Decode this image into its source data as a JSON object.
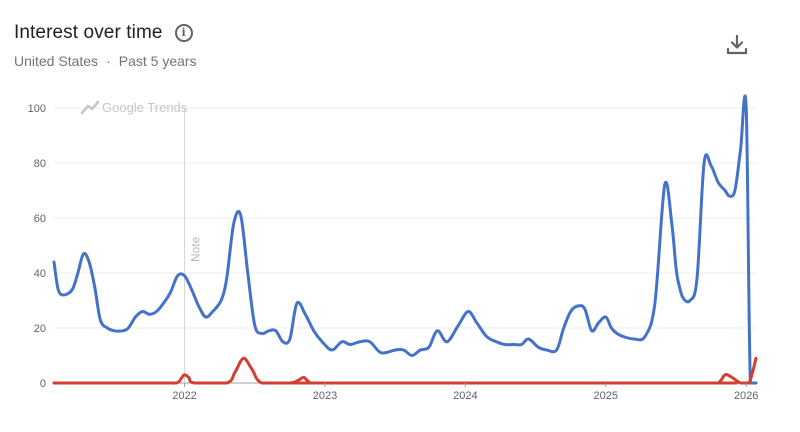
{
  "header": {
    "title": "Interest over time",
    "region": "United States",
    "separator": "·",
    "timeframe": "Past 5 years"
  },
  "icons": {
    "info": "info-icon",
    "download": "download-icon"
  },
  "watermark": "Google Trends",
  "note_label": "Note",
  "colors": {
    "series_blue": "#4472ca",
    "series_red": "#d23f31",
    "grid": "#ececec",
    "axis": "#9aa0a6"
  },
  "chart_data": {
    "type": "line",
    "xlabel": "",
    "ylabel": "",
    "ylim": [
      0,
      100
    ],
    "xlim": [
      2021.07,
      2026.07
    ],
    "y_ticks": [
      0,
      20,
      40,
      60,
      80,
      100
    ],
    "x_ticks": [
      2022,
      2023,
      2024,
      2025,
      2026
    ],
    "x_tick_labels": [
      "2022",
      "2023",
      "2024",
      "2025",
      "2026"
    ],
    "grid": true,
    "note_at": 2022.0,
    "series": [
      {
        "color": "#4472ca",
        "x": [
          2021.07,
          2021.1,
          2021.14,
          2021.2,
          2021.24,
          2021.28,
          2021.32,
          2021.36,
          2021.4,
          2021.45,
          2021.5,
          2021.56,
          2021.6,
          2021.65,
          2021.7,
          2021.75,
          2021.8,
          2021.85,
          2021.9,
          2021.95,
          2022.0,
          2022.05,
          2022.1,
          2022.15,
          2022.2,
          2022.26,
          2022.3,
          2022.35,
          2022.4,
          2022.45,
          2022.5,
          2022.55,
          2022.6,
          2022.65,
          2022.7,
          2022.75,
          2022.8,
          2022.86,
          2022.92,
          2022.98,
          2023.05,
          2023.12,
          2023.18,
          2023.25,
          2023.32,
          2023.4,
          2023.5,
          2023.56,
          2023.62,
          2023.68,
          2023.74,
          2023.8,
          2023.87,
          2023.95,
          2024.02,
          2024.08,
          2024.15,
          2024.22,
          2024.28,
          2024.35,
          2024.4,
          2024.45,
          2024.52,
          2024.58,
          2024.65,
          2024.7,
          2024.75,
          2024.8,
          2024.85,
          2024.9,
          2024.95,
          2025.0,
          2025.04,
          2025.08,
          2025.12,
          2025.2,
          2025.28,
          2025.35,
          2025.42,
          2025.47,
          2025.5,
          2025.52,
          2025.55,
          2025.6,
          2025.65,
          2025.7,
          2025.75,
          2025.8,
          2025.85,
          2025.88,
          2025.92,
          2025.96,
          2026.0,
          2026.03,
          2026.07
        ],
        "y": [
          44,
          34,
          32,
          34,
          40,
          47,
          44,
          35,
          23,
          20,
          19,
          19,
          20,
          24,
          26,
          25,
          26,
          29,
          33,
          39,
          39,
          34,
          28,
          24,
          26,
          30,
          38,
          58,
          61,
          40,
          21,
          18,
          19,
          19,
          15,
          16,
          29,
          25,
          19,
          15,
          12,
          15,
          14,
          15,
          15,
          11,
          12,
          12,
          10,
          12,
          13,
          19,
          15,
          21,
          26,
          22,
          17,
          15,
          14,
          14,
          14,
          16,
          13,
          12,
          12,
          20,
          26,
          28,
          27,
          19,
          22,
          24,
          20,
          18,
          17,
          16,
          17,
          29,
          72,
          58,
          42,
          36,
          31,
          30,
          38,
          80,
          79,
          73,
          70,
          68,
          70,
          85,
          100,
          0,
          0
        ],
        "name": ""
      },
      {
        "color": "#d23f31",
        "x": [
          2021.07,
          2021.8,
          2021.94,
          2021.98,
          2022.0,
          2022.03,
          2022.07,
          2022.3,
          2022.36,
          2022.42,
          2022.48,
          2022.55,
          2022.75,
          2022.81,
          2022.85,
          2022.9,
          2023.0,
          2025.7,
          2025.8,
          2025.85,
          2025.9,
          2025.96,
          2026.02,
          2026.07
        ],
        "y": [
          0,
          0,
          0,
          2,
          3,
          2,
          0,
          0,
          4,
          9,
          5,
          0,
          0,
          1,
          2,
          0,
          0,
          0,
          0,
          3,
          2,
          0,
          0,
          9
        ],
        "name": ""
      }
    ]
  }
}
